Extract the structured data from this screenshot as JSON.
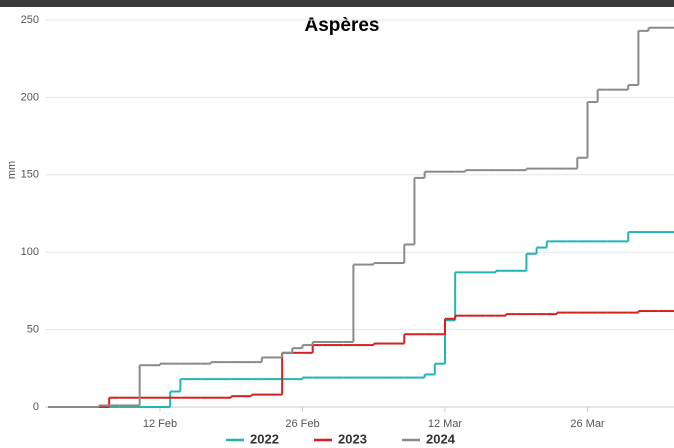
{
  "chart_data": {
    "type": "step-line",
    "title": "Aspères",
    "y_label": "mm",
    "x": [
      0,
      1,
      2,
      3,
      4,
      5,
      6,
      7,
      8,
      9,
      10,
      11,
      12,
      13,
      14,
      15,
      16,
      17,
      18,
      19,
      20,
      21,
      22,
      23,
      24,
      25,
      26,
      27,
      28,
      29,
      30,
      31,
      32,
      33,
      34,
      35,
      36,
      37,
      38,
      39,
      40,
      41,
      42,
      43,
      44,
      45,
      46,
      47,
      48,
      49,
      50,
      51,
      52,
      53,
      54,
      55,
      56,
      57,
      58,
      59,
      60,
      61
    ],
    "xlim": [
      -0.3,
      61.5
    ],
    "xticks": [
      {
        "value": 11,
        "label": "12 Feb"
      },
      {
        "value": 25,
        "label": "26 Feb"
      },
      {
        "value": 39,
        "label": "12 Mar"
      },
      {
        "value": 53,
        "label": "26 Mar"
      }
    ],
    "ylim": [
      0,
      250
    ],
    "yticks": [
      0,
      50,
      100,
      150,
      200,
      250
    ],
    "grid": true,
    "series": [
      {
        "name": "2022",
        "color": "#1fb5b5",
        "values": [
          0,
          0,
          0,
          0,
          0,
          0,
          0,
          0,
          0,
          0,
          0,
          0,
          10,
          18,
          18,
          18,
          18,
          18,
          18,
          18,
          18,
          18,
          18,
          18,
          18,
          19,
          19,
          19,
          19,
          19,
          19,
          19,
          19,
          19,
          19,
          19,
          19,
          21,
          28,
          56,
          87,
          87,
          87,
          87,
          88,
          88,
          88,
          99,
          103,
          107,
          107,
          107,
          107,
          107,
          107,
          107,
          107,
          113,
          113,
          113,
          113,
          113
        ]
      },
      {
        "name": "2023",
        "color": "#d42020",
        "values": [
          0,
          0,
          0,
          0,
          0,
          0,
          6,
          6,
          6,
          6,
          6,
          6,
          6,
          6,
          6,
          6,
          6,
          6,
          7,
          7,
          8,
          8,
          8,
          35,
          35,
          35,
          40,
          40,
          40,
          40,
          40,
          40,
          41,
          41,
          41,
          47,
          47,
          47,
          47,
          57,
          59,
          59,
          59,
          59,
          59,
          60,
          60,
          60,
          60,
          60,
          61,
          61,
          61,
          61,
          61,
          61,
          61,
          61,
          62,
          62,
          62,
          62
        ]
      },
      {
        "name": "2024",
        "color": "#8a8a8a",
        "values": [
          0,
          0,
          0,
          0,
          0,
          1,
          1,
          1,
          1,
          27,
          27,
          28,
          28,
          28,
          28,
          28,
          29,
          29,
          29,
          29,
          29,
          32,
          32,
          35,
          38,
          40,
          42,
          42,
          42,
          42,
          92,
          92,
          93,
          93,
          93,
          105,
          148,
          152,
          152,
          152,
          152,
          153,
          153,
          153,
          153,
          153,
          153,
          154,
          154,
          154,
          154,
          154,
          161,
          197,
          205,
          205,
          205,
          208,
          243,
          245,
          245,
          245
        ]
      }
    ]
  }
}
